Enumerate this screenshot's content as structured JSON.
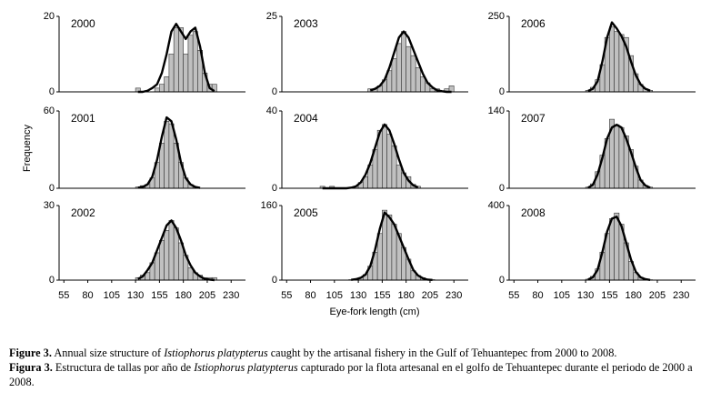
{
  "y_label": "Frequency",
  "x_label": "Eye-fork length (cm)",
  "caption": {
    "en": {
      "label": "Figure 3.",
      "a": "Annual size structure of",
      "species": "Istiophorus platypterus",
      "b": "caught by the artisanal fishery in the Gulf of Tehuantepec from 2000 to 2008."
    },
    "es": {
      "label": "Figura 3.",
      "a": "Estructura de tallas por año de",
      "species": "Istiophorus platypterus",
      "b": "capturado por la flota artesanal en el golfo de Tehuantepec durante el periodo de 2000 a 2008."
    }
  },
  "chart_data": [
    {
      "type": "histogram",
      "label": "2000",
      "xlim": [
        50,
        245
      ],
      "ylim": [
        0,
        20
      ],
      "yticks": [
        0,
        20
      ],
      "bins": [
        130,
        135,
        140,
        145,
        150,
        155,
        160,
        165,
        170,
        175,
        180,
        185,
        190,
        195,
        200,
        205,
        210,
        215
      ],
      "counts": [
        1,
        0,
        0,
        0,
        1,
        2,
        4,
        10,
        17,
        17,
        10,
        15,
        16,
        11,
        5,
        2,
        2
      ],
      "fit_x": [
        132.5,
        137.5,
        142.5,
        147.5,
        152.5,
        157.5,
        162.5,
        167.5,
        172.5,
        177.5,
        182.5,
        187.5,
        192.5,
        197.5,
        202.5,
        207.5,
        212.5
      ],
      "fit": [
        0,
        0,
        0.3,
        1,
        2,
        5,
        10,
        16,
        18,
        16,
        14,
        16,
        17,
        12,
        5,
        1,
        0.2
      ]
    },
    {
      "type": "histogram",
      "label": "2003",
      "xlim": [
        50,
        245
      ],
      "ylim": [
        0,
        25
      ],
      "yticks": [
        0,
        25
      ],
      "bins": [
        140,
        145,
        150,
        155,
        160,
        165,
        170,
        175,
        180,
        185,
        190,
        195,
        200,
        205,
        210,
        215,
        220,
        225,
        230
      ],
      "counts": [
        1,
        1,
        2,
        4,
        7,
        11,
        16,
        20,
        15,
        12,
        8,
        5,
        3,
        1,
        1,
        0,
        1,
        2
      ],
      "fit_x": [
        142.5,
        147.5,
        152.5,
        157.5,
        162.5,
        167.5,
        172.5,
        177.5,
        182.5,
        187.5,
        192.5,
        197.5,
        202.5,
        207.5,
        212.5,
        217.5,
        222.5,
        227.5
      ],
      "fit": [
        0.5,
        1,
        2,
        4,
        8,
        13,
        18,
        20,
        18,
        14,
        10,
        6,
        3,
        1.5,
        0.5,
        0.2,
        0,
        0
      ]
    },
    {
      "type": "histogram",
      "label": "2006",
      "xlim": [
        50,
        245
      ],
      "ylim": [
        0,
        250
      ],
      "yticks": [
        0,
        250
      ],
      "bins": [
        130,
        135,
        140,
        145,
        150,
        155,
        160,
        165,
        170,
        175,
        180,
        185,
        190,
        195,
        200
      ],
      "counts": [
        5,
        15,
        40,
        90,
        180,
        215,
        200,
        190,
        180,
        120,
        60,
        25,
        10,
        5
      ],
      "fit_x": [
        132.5,
        137.5,
        142.5,
        147.5,
        152.5,
        157.5,
        162.5,
        167.5,
        172.5,
        177.5,
        182.5,
        187.5,
        192.5,
        197.5
      ],
      "fit": [
        3,
        10,
        35,
        100,
        180,
        230,
        210,
        185,
        150,
        100,
        55,
        25,
        10,
        4
      ]
    },
    {
      "type": "histogram",
      "label": "2001",
      "xlim": [
        50,
        245
      ],
      "ylim": [
        0,
        60
      ],
      "yticks": [
        0,
        60
      ],
      "bins": [
        130,
        135,
        140,
        145,
        150,
        155,
        160,
        165,
        170,
        175,
        180,
        185,
        190,
        195,
        200
      ],
      "counts": [
        1,
        2,
        3,
        8,
        20,
        35,
        52,
        50,
        35,
        20,
        8,
        3,
        1,
        0
      ],
      "fit_x": [
        132.5,
        137.5,
        142.5,
        147.5,
        152.5,
        157.5,
        162.5,
        167.5,
        172.5,
        177.5,
        182.5,
        187.5,
        192.5,
        197.5
      ],
      "fit": [
        0.5,
        1,
        3,
        9,
        22,
        40,
        55,
        52,
        38,
        20,
        8,
        3,
        1,
        0.3
      ]
    },
    {
      "type": "histogram",
      "label": "2004",
      "xlim": [
        50,
        245
      ],
      "ylim": [
        0,
        40
      ],
      "yticks": [
        0,
        40
      ],
      "bins": [
        90,
        95,
        100,
        105,
        110,
        115,
        120,
        125,
        130,
        135,
        140,
        145,
        150,
        155,
        160,
        165,
        170,
        175,
        180,
        185,
        190,
        195
      ],
      "counts": [
        1,
        0,
        1,
        0,
        0,
        0,
        0,
        1,
        3,
        6,
        12,
        20,
        30,
        33,
        28,
        22,
        12,
        8,
        6,
        2,
        1
      ],
      "fit_x": [
        92.5,
        97.5,
        102.5,
        107.5,
        112.5,
        117.5,
        122.5,
        127.5,
        132.5,
        137.5,
        142.5,
        147.5,
        152.5,
        157.5,
        162.5,
        167.5,
        172.5,
        177.5,
        182.5,
        187.5,
        192.5
      ],
      "fit": [
        0,
        0,
        0,
        0,
        0,
        0,
        0.3,
        1,
        3,
        7,
        13,
        21,
        29,
        33,
        30,
        23,
        15,
        8,
        4,
        1.5,
        0.5
      ]
    },
    {
      "type": "histogram",
      "label": "2007",
      "xlim": [
        50,
        245
      ],
      "ylim": [
        0,
        140
      ],
      "yticks": [
        0,
        140
      ],
      "bins": [
        130,
        135,
        140,
        145,
        150,
        155,
        160,
        165,
        170,
        175,
        180,
        185,
        190,
        195,
        200
      ],
      "counts": [
        2,
        8,
        30,
        60,
        90,
        125,
        115,
        110,
        95,
        70,
        40,
        15,
        5,
        2
      ],
      "fit_x": [
        132.5,
        137.5,
        142.5,
        147.5,
        152.5,
        157.5,
        162.5,
        167.5,
        172.5,
        177.5,
        182.5,
        187.5,
        192.5,
        197.5
      ],
      "fit": [
        1,
        6,
        25,
        55,
        90,
        110,
        115,
        110,
        90,
        65,
        38,
        15,
        5,
        1
      ]
    },
    {
      "type": "histogram",
      "label": "2002",
      "xlim": [
        50,
        245
      ],
      "ylim": [
        0,
        30
      ],
      "yticks": [
        0,
        30
      ],
      "xticks": [
        55,
        80,
        105,
        130,
        155,
        180,
        205,
        230
      ],
      "bins": [
        130,
        135,
        140,
        145,
        150,
        155,
        160,
        165,
        170,
        175,
        180,
        185,
        190,
        195,
        200,
        205,
        210,
        215
      ],
      "counts": [
        1,
        2,
        3,
        7,
        11,
        16,
        20,
        24,
        21,
        15,
        10,
        5,
        3,
        2,
        1,
        1,
        1
      ],
      "fit_x": [
        132.5,
        137.5,
        142.5,
        147.5,
        152.5,
        157.5,
        162.5,
        167.5,
        172.5,
        177.5,
        182.5,
        187.5,
        192.5,
        197.5,
        202.5,
        207.5,
        212.5
      ],
      "fit": [
        0.5,
        1.5,
        4,
        7,
        12,
        17,
        22,
        24,
        21,
        16,
        10,
        6,
        3,
        1.5,
        0.5,
        0.2,
        0
      ]
    },
    {
      "type": "histogram",
      "label": "2005",
      "xlim": [
        50,
        245
      ],
      "ylim": [
        0,
        160
      ],
      "yticks": [
        0,
        160
      ],
      "xticks": [
        55,
        80,
        105,
        130,
        155,
        180,
        205,
        230
      ],
      "bins": [
        120,
        125,
        130,
        135,
        140,
        145,
        150,
        155,
        160,
        165,
        170,
        175,
        180,
        185,
        190,
        195,
        200,
        205,
        210
      ],
      "counts": [
        1,
        2,
        5,
        12,
        30,
        60,
        100,
        150,
        140,
        120,
        100,
        70,
        45,
        20,
        10,
        5,
        2,
        1
      ],
      "fit_x": [
        122.5,
        127.5,
        132.5,
        137.5,
        142.5,
        147.5,
        152.5,
        157.5,
        162.5,
        167.5,
        172.5,
        177.5,
        182.5,
        187.5,
        192.5,
        197.5,
        202.5,
        207.5
      ],
      "fit": [
        0.5,
        2,
        5,
        12,
        30,
        65,
        110,
        145,
        135,
        120,
        95,
        70,
        45,
        22,
        10,
        4,
        1,
        0.3
      ]
    },
    {
      "type": "histogram",
      "label": "2008",
      "xlim": [
        50,
        245
      ],
      "ylim": [
        0,
        400
      ],
      "yticks": [
        0,
        400
      ],
      "xticks": [
        55,
        80,
        105,
        130,
        155,
        180,
        205,
        230
      ],
      "bins": [
        130,
        135,
        140,
        145,
        150,
        155,
        160,
        165,
        170,
        175,
        180,
        185,
        190,
        195,
        200
      ],
      "counts": [
        5,
        20,
        60,
        150,
        250,
        330,
        360,
        300,
        200,
        100,
        40,
        15,
        5,
        2
      ],
      "fit_x": [
        132.5,
        137.5,
        142.5,
        147.5,
        152.5,
        157.5,
        162.5,
        167.5,
        172.5,
        177.5,
        182.5,
        187.5,
        192.5,
        197.5
      ],
      "fit": [
        3,
        15,
        55,
        150,
        260,
        330,
        340,
        290,
        200,
        110,
        45,
        15,
        5,
        1
      ]
    }
  ]
}
